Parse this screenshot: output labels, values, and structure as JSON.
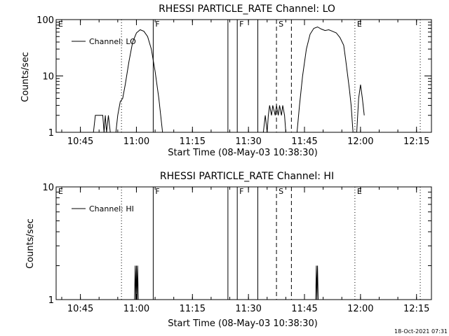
{
  "chart_data": [
    {
      "type": "line",
      "title": "RHESSI PARTICLE_RATE Channel: LO",
      "xlabel": "Start Time (08-May-03 10:38:30)",
      "ylabel": "Counts/sec",
      "yscale": "log",
      "ylim": [
        1,
        100
      ],
      "xlim": [
        "10:38:30",
        "12:19:00"
      ],
      "x_ticks": [
        "10:45",
        "11:00",
        "11:15",
        "11:30",
        "11:45",
        "12:00",
        "12:15"
      ],
      "y_ticks": [
        "1",
        "10",
        "100"
      ],
      "legend": "Channel: LO",
      "grid": false,
      "event_markers": [
        {
          "label": "E",
          "time": "10:38:30",
          "style": "dotted"
        },
        {
          "label": "",
          "time": "10:56:00",
          "style": "dotted"
        },
        {
          "label": "F",
          "time": "11:04:30",
          "style": "solid"
        },
        {
          "label": "",
          "time": "11:24:30",
          "style": "solid"
        },
        {
          "label": "F",
          "time": "11:27:00",
          "style": "solid"
        },
        {
          "label": "",
          "time": "11:32:30",
          "style": "solid"
        },
        {
          "label": "S",
          "time": "11:37:30",
          "style": "dashed"
        },
        {
          "label": "",
          "time": "11:41:30",
          "style": "dashed"
        },
        {
          "label": "E",
          "time": "11:58:30",
          "style": "dotted"
        },
        {
          "label": "",
          "time": "12:16:00",
          "style": "dotted"
        }
      ],
      "series": [
        {
          "segments": [
            [
              [
                "10:48:30",
                1
              ],
              [
                "10:49:00",
                2
              ],
              [
                "10:51:00",
                2
              ],
              [
                "10:51:20",
                1
              ],
              [
                "10:51:40",
                2
              ],
              [
                "10:52:00",
                1
              ],
              [
                "10:52:30",
                2
              ],
              [
                "10:53:00",
                1
              ]
            ],
            [
              [
                "10:54:30",
                1
              ],
              [
                "10:55:00",
                2
              ],
              [
                "10:55:40",
                3.5
              ],
              [
                "10:56:20",
                4
              ],
              [
                "10:57:00",
                7
              ],
              [
                "10:58:00",
                18
              ],
              [
                "10:59:00",
                40
              ],
              [
                "11:00:00",
                58
              ],
              [
                "11:01:00",
                66
              ],
              [
                "11:02:00",
                62
              ],
              [
                "11:03:00",
                50
              ],
              [
                "11:04:00",
                30
              ],
              [
                "11:05:00",
                12
              ],
              [
                "11:06:00",
                4
              ],
              [
                "11:07:00",
                1
              ]
            ],
            [
              [
                "11:34:00",
                1
              ],
              [
                "11:34:30",
                2
              ],
              [
                "11:35:00",
                1
              ],
              [
                "11:35:20",
                2
              ],
              [
                "11:35:40",
                3
              ],
              [
                "11:36:10",
                2
              ],
              [
                "11:36:30",
                3
              ],
              [
                "11:37:10",
                2
              ],
              [
                "11:37:30",
                3
              ],
              [
                "11:38:00",
                2
              ],
              [
                "11:38:20",
                3
              ],
              [
                "11:38:50",
                2
              ],
              [
                "11:39:10",
                3
              ],
              [
                "11:39:40",
                2
              ],
              [
                "11:40:00",
                1
              ]
            ],
            [
              [
                "11:43:00",
                1
              ],
              [
                "11:43:40",
                3
              ],
              [
                "11:44:30",
                10
              ],
              [
                "11:45:30",
                30
              ],
              [
                "11:46:30",
                55
              ],
              [
                "11:47:30",
                70
              ],
              [
                "11:48:30",
                74
              ],
              [
                "11:49:30",
                68
              ],
              [
                "11:50:30",
                64
              ],
              [
                "11:51:30",
                66
              ],
              [
                "11:52:30",
                62
              ],
              [
                "11:53:30",
                58
              ],
              [
                "11:54:30",
                48
              ],
              [
                "11:55:30",
                35
              ],
              [
                "11:56:00",
                20
              ],
              [
                "11:57:00",
                6
              ],
              [
                "11:57:30",
                3
              ],
              [
                "11:58:00",
                1
              ]
            ],
            [
              [
                "11:59:00",
                1
              ],
              [
                "11:59:30",
                4
              ],
              [
                "12:00:00",
                7
              ],
              [
                "12:00:30",
                4
              ],
              [
                "12:01:00",
                2
              ]
            ]
          ]
        }
      ]
    },
    {
      "type": "line",
      "title": "RHESSI PARTICLE_RATE Channel: HI",
      "xlabel": "Start Time (08-May-03 10:38:30)",
      "ylabel": "Counts/sec",
      "yscale": "log",
      "ylim": [
        1,
        10
      ],
      "xlim": [
        "10:38:30",
        "12:19:00"
      ],
      "x_ticks": [
        "10:45",
        "11:00",
        "11:15",
        "11:30",
        "11:45",
        "12:00",
        "12:15"
      ],
      "y_ticks": [
        "1",
        "10"
      ],
      "legend": "Channel: HI",
      "grid": false,
      "event_markers": [
        {
          "label": "E",
          "time": "10:38:30",
          "style": "dotted"
        },
        {
          "label": "",
          "time": "10:56:00",
          "style": "dotted"
        },
        {
          "label": "F",
          "time": "11:04:30",
          "style": "solid"
        },
        {
          "label": "",
          "time": "11:24:30",
          "style": "solid"
        },
        {
          "label": "F",
          "time": "11:27:00",
          "style": "solid"
        },
        {
          "label": "",
          "time": "11:32:30",
          "style": "solid"
        },
        {
          "label": "S",
          "time": "11:37:30",
          "style": "dashed"
        },
        {
          "label": "",
          "time": "11:41:30",
          "style": "dashed"
        },
        {
          "label": "E",
          "time": "11:58:30",
          "style": "dotted"
        },
        {
          "label": "",
          "time": "12:16:00",
          "style": "dotted"
        }
      ],
      "series": [
        {
          "segments": [
            [
              [
                "10:59:30",
                1
              ],
              [
                "10:59:40",
                2
              ],
              [
                "10:59:50",
                1
              ],
              [
                "11:00:00",
                2
              ],
              [
                "11:00:10",
                1
              ],
              [
                "11:00:20",
                2
              ],
              [
                "11:00:30",
                1
              ]
            ],
            [
              [
                "11:48:00",
                1
              ],
              [
                "11:48:10",
                2
              ],
              [
                "11:48:20",
                1
              ],
              [
                "11:48:30",
                2
              ],
              [
                "11:48:40",
                1
              ]
            ]
          ]
        }
      ]
    }
  ],
  "footer": {
    "timestamp": "18-Oct-2021 07:31"
  }
}
